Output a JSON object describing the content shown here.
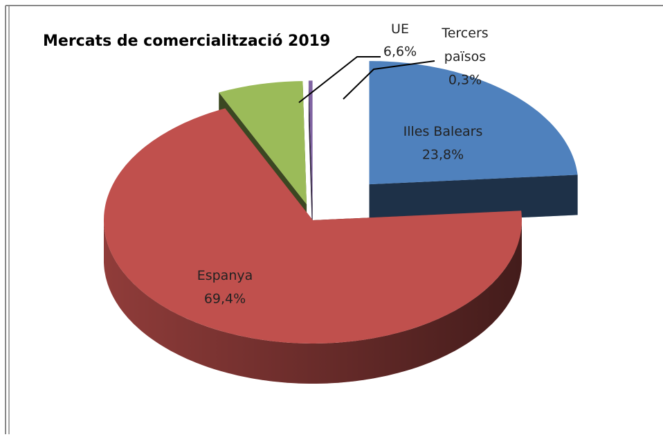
{
  "chart_data": {
    "type": "pie",
    "title": "Mercats de comercialització 2019",
    "categories": [
      "Illes Balears",
      "Espanya",
      "UE",
      "Tercers països"
    ],
    "values": [
      23.8,
      69.4,
      6.6,
      0.3
    ],
    "value_labels": [
      "23,8%",
      "69,4%",
      "6,6%",
      "0,3%"
    ],
    "colors": [
      "#4f81bd",
      "#c0504d",
      "#9bbb59",
      "#8064a2"
    ]
  }
}
